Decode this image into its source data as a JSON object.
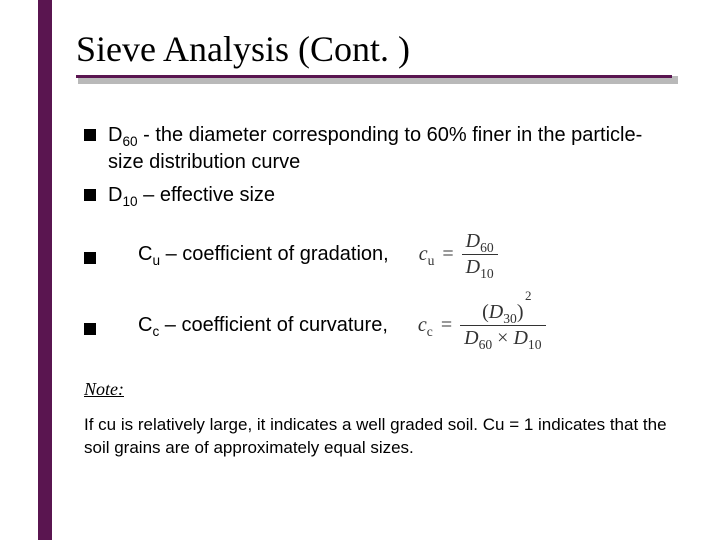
{
  "colors": {
    "accent": "#5a1550",
    "title": "#000000",
    "body": "#000000",
    "bullet": "#000000",
    "formula": "#333333",
    "line_shadow": "#b9b9b9"
  },
  "title": "Sieve Analysis (Cont. )",
  "bullets": {
    "b1_pre": "D",
    "b1_sub": "60",
    "b1_post": " - the diameter corresponding to 60% finer in the particle-size distribution curve",
    "b2_pre": "D",
    "b2_sub": "10",
    "b2_post": " – effective size",
    "b3_pre": "C",
    "b3_sub": "u",
    "b3_post": " – coefficient of gradation,",
    "b4_pre": "C",
    "b4_sub": "c",
    "b4_post": " – coefficient of curvature,"
  },
  "formulas": {
    "cu_lhs_base": "c",
    "cu_lhs_sub": "u",
    "eq": "=",
    "cu_num_base": "D",
    "cu_num_sub": "60",
    "cu_den_base": "D",
    "cu_den_sub": "10",
    "cc_lhs_base": "c",
    "cc_lhs_sub": "c",
    "cc_num_lp": "(",
    "cc_num_base": "D",
    "cc_num_sub": "30",
    "cc_num_rp": ")",
    "cc_num_exp": "2",
    "cc_den_l_base": "D",
    "cc_den_l_sub": "60",
    "cc_den_times": " × ",
    "cc_den_r_base": "D",
    "cc_den_r_sub": "10"
  },
  "note": {
    "heading": "Note:",
    "body": "If cu is relatively large, it indicates a well graded soil. Cu = 1 indicates that the soil grains are of approximately equal sizes."
  }
}
